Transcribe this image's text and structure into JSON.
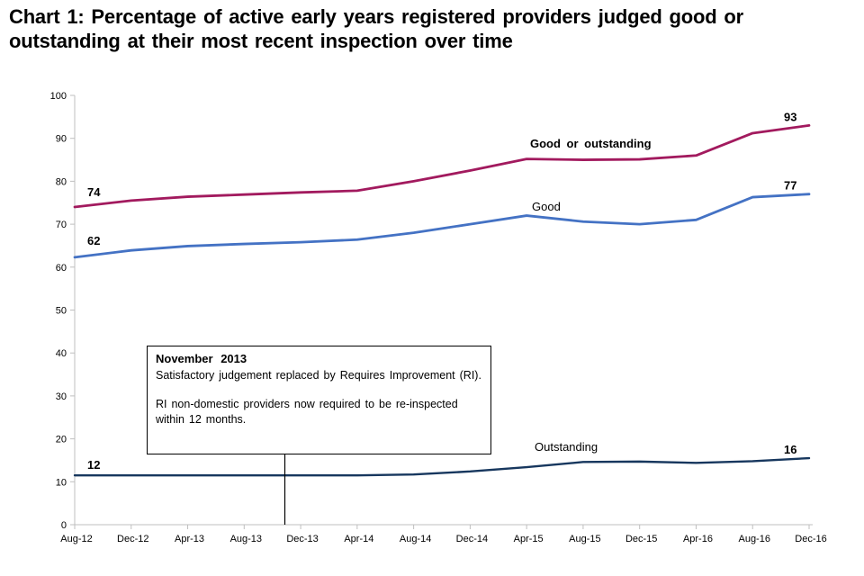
{
  "title": {
    "line1": "Chart 1: Percentage of active early years registered providers judged good or",
    "line2": "outstanding at their most recent inspection over time"
  },
  "chart_data": {
    "type": "line",
    "x": [
      "Aug-12",
      "Dec-12",
      "Apr-13",
      "Aug-13",
      "Dec-13",
      "Apr-14",
      "Aug-14",
      "Dec-14",
      "Apr-15",
      "Aug-15",
      "Dec-15",
      "Apr-16",
      "Aug-16",
      "Dec-16"
    ],
    "ylim": [
      0,
      100
    ],
    "ytick_step": 10,
    "grid": false,
    "axis_color": "#BFBFBF",
    "legend_position": "inline-labels",
    "series": [
      {
        "name": "Good or outstanding",
        "color": "#A21A5E",
        "values": [
          74,
          75.5,
          76.4,
          76.9,
          77.4,
          77.8,
          80,
          82.5,
          85.2,
          85,
          85.1,
          86,
          91.2,
          93
        ],
        "start_label": "74",
        "end_label": "93"
      },
      {
        "name": "Good",
        "color": "#4472C4",
        "values": [
          62.3,
          63.9,
          64.9,
          65.4,
          65.8,
          66.4,
          68,
          70,
          72,
          70.6,
          70,
          71,
          76.3,
          77
        ],
        "start_label": "62",
        "end_label": "77"
      },
      {
        "name": "Outstanding",
        "color": "#17375E",
        "values": [
          11.5,
          11.5,
          11.5,
          11.5,
          11.5,
          11.5,
          11.7,
          12.4,
          13.4,
          14.6,
          14.7,
          14.4,
          14.8,
          15.5
        ],
        "start_label": "12",
        "end_label": "16"
      }
    ]
  },
  "annotation": {
    "heading": "November 2013",
    "paragraph1": "Satisfactory judgement replaced by Requires Improvement (RI).",
    "paragraph2": "RI non-domestic providers now required to be re-inspected within 12 months."
  }
}
